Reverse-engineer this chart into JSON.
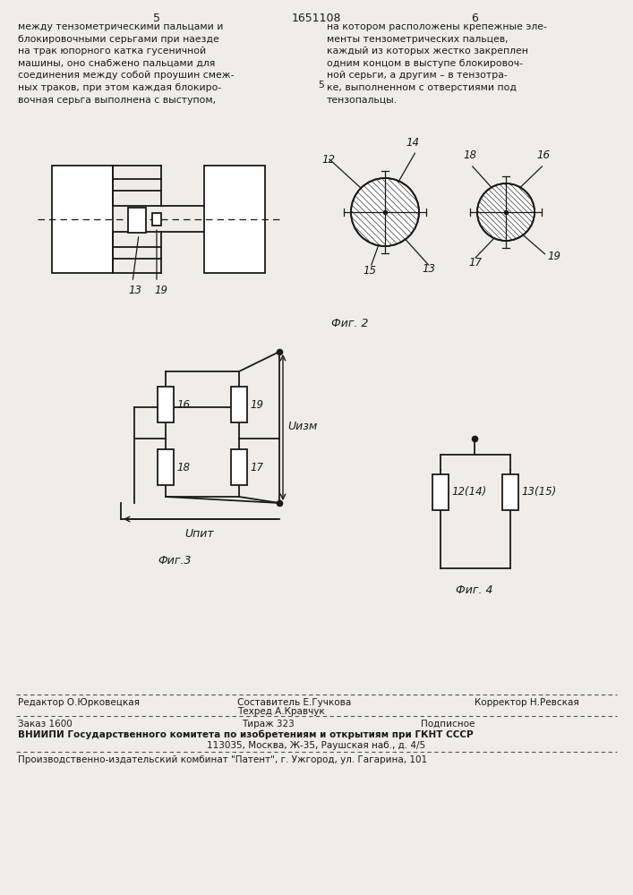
{
  "bg_color": "#f0ede8",
  "text_color": "#111111",
  "page_number_left": "5",
  "page_number_center": "1651108",
  "page_number_right": "6",
  "text_left": "между тензометрическими пальцами и\nблокировочными серьгами при наезде\nна трак юпорного катка гусеничной\nмашины, оно снабжено пальцами для\nсоединения между собой проушин смеж-\nных траков, при этом каждая блокиро-\nвочная серьга выполнена с выступом,",
  "text_right": "на котором расположены крепежные эле-\nменты тензометрических пальцев,\nкаждый из которых жестко закреплен\nодним концом в выступе блокировоч-\nной серьги, а другим – в тензотра-\nке, выполненном с отверстиями под\nтензопальцы.",
  "fig2_label": "Фиг. 2",
  "fig3_label": "Фиг.3",
  "fig4_label": "Фиг. 4",
  "footer_editor": "Редактор О.Юрковецкая",
  "footer_composer": "Составитель Е.Гучкова",
  "footer_techred": "Техред А.Кравчук",
  "footer_corrector": "Корректор Н.Ревская",
  "footer_order": "Заказ 1600",
  "footer_tirazh": "Тираж 323",
  "footer_podpisnoe": "Подписное",
  "footer_vniiipi": "ВНИИПИ Государственного комитета по изобретениям и открытиям при ГКНТ СССР",
  "footer_address": "113035, Москва, Ж-35, Раушская наб., д. 4/5",
  "footer_patent": "Производственно-издательский комбинат \"Патент\", г. Ужгород, ул. Гагарина, 101"
}
